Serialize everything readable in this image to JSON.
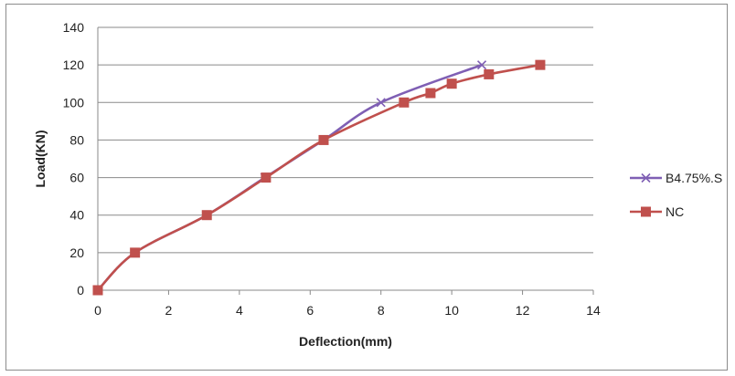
{
  "chart_data": {
    "type": "line",
    "xlabel": "Deflection(mm)",
    "ylabel": "Load(KN)",
    "xlim": [
      0,
      14
    ],
    "ylim": [
      0,
      140
    ],
    "xticks": [
      0,
      2,
      4,
      6,
      8,
      10,
      12,
      14
    ],
    "yticks": [
      0,
      20,
      40,
      60,
      80,
      100,
      120,
      140
    ],
    "grid": "horizontal",
    "legend_position": "right",
    "series": [
      {
        "name": "B4.75%.S",
        "color": "#7f5fb4",
        "marker": "x",
        "points": [
          {
            "x": 0,
            "y": 0
          },
          {
            "x": 1.05,
            "y": 20
          },
          {
            "x": 3.08,
            "y": 40
          },
          {
            "x": 4.72,
            "y": 60
          },
          {
            "x": 6.38,
            "y": 80
          },
          {
            "x": 8.0,
            "y": 100
          },
          {
            "x": 10.85,
            "y": 120
          }
        ]
      },
      {
        "name": "NC",
        "color": "#c0504d",
        "marker": "square",
        "points": [
          {
            "x": 0,
            "y": 0
          },
          {
            "x": 1.05,
            "y": 20
          },
          {
            "x": 3.08,
            "y": 40
          },
          {
            "x": 4.75,
            "y": 60
          },
          {
            "x": 6.38,
            "y": 80
          },
          {
            "x": 8.65,
            "y": 100
          },
          {
            "x": 9.4,
            "y": 105
          },
          {
            "x": 10.0,
            "y": 110
          },
          {
            "x": 11.05,
            "y": 115
          },
          {
            "x": 12.5,
            "y": 120
          }
        ]
      }
    ]
  }
}
